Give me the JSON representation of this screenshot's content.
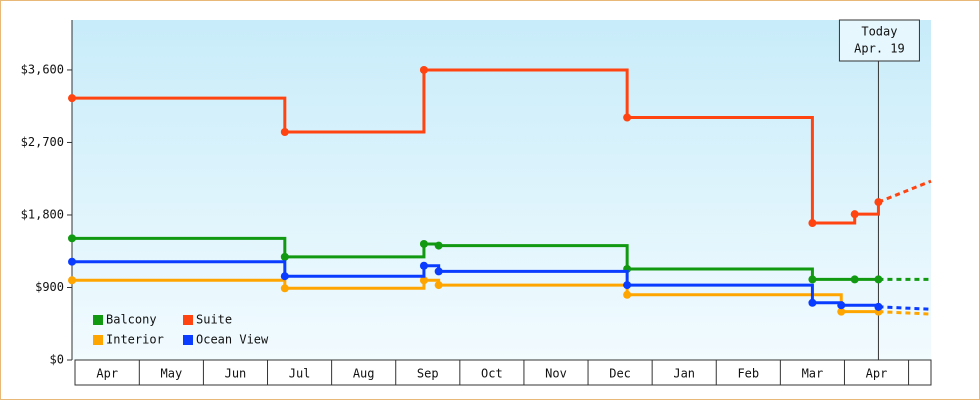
{
  "chart_data": {
    "type": "line",
    "step": "after",
    "categories": [
      "Apr",
      "May",
      "Jun",
      "Jul",
      "Aug",
      "Sep",
      "Oct",
      "Nov",
      "Dec",
      "Jan",
      "Feb",
      "Mar",
      "Apr"
    ],
    "xlim": [
      -0.05,
      13.35
    ],
    "ylim": [
      0,
      4220
    ],
    "yticks": [
      {
        "value": 0,
        "label": "$0"
      },
      {
        "value": 900,
        "label": "$900"
      },
      {
        "value": 1800,
        "label": "$1,800"
      },
      {
        "value": 2700,
        "label": "$2,700"
      },
      {
        "value": 3600,
        "label": "$3,600"
      }
    ],
    "today": {
      "x": 12.53,
      "lines": [
        "Today",
        "Apr. 19"
      ]
    },
    "legend": "lower left",
    "series": [
      {
        "name": "Balcony",
        "color": "#119911",
        "x": [
          -0.05,
          3.27,
          5.44,
          5.67,
          8.61,
          11.5,
          12.16,
          12.53,
          13.35
        ],
        "values": [
          1510,
          1280,
          1440,
          1420,
          1130,
          1000,
          1000,
          1000,
          1000
        ]
      },
      {
        "name": "Suite",
        "color": "#ff4411",
        "x": [
          -0.05,
          3.27,
          5.44,
          8.61,
          11.5,
          12.16,
          12.53,
          13.35
        ],
        "values": [
          3250,
          2830,
          3600,
          3010,
          1700,
          1810,
          1960,
          2220
        ]
      },
      {
        "name": "Interior",
        "color": "#ffa500",
        "x": [
          -0.05,
          3.27,
          5.44,
          5.67,
          8.61,
          11.95,
          12.53,
          13.35
        ],
        "values": [
          990,
          890,
          990,
          930,
          810,
          600,
          600,
          570
        ]
      },
      {
        "name": "Ocean View",
        "color": "#0a3cff",
        "x": [
          -0.05,
          3.27,
          5.44,
          5.67,
          8.61,
          11.5,
          11.95,
          12.53,
          13.35
        ],
        "values": [
          1220,
          1040,
          1170,
          1100,
          930,
          710,
          680,
          660,
          630
        ]
      }
    ]
  }
}
